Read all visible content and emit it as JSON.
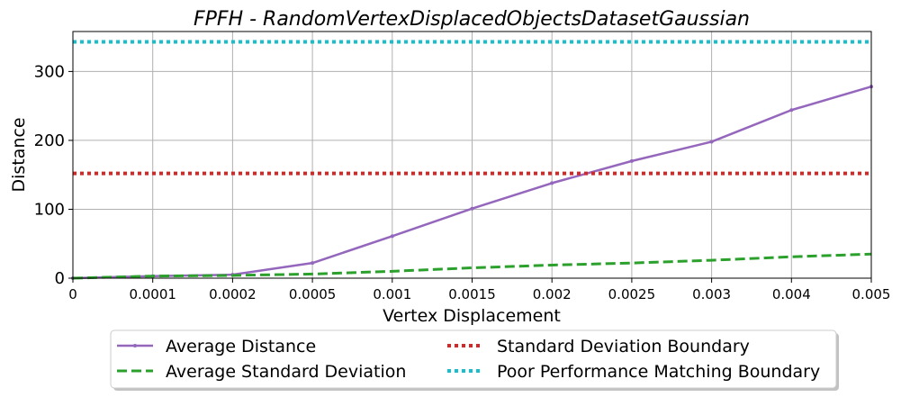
{
  "chart_data": {
    "type": "line",
    "title": "FPFH - RandomVertexDisplacedObjectsDatasetGaussian",
    "xlabel": "Vertex Displacement",
    "ylabel": "Distance",
    "categories": [
      "0",
      "0.0001",
      "0.0002",
      "0.0005",
      "0.001",
      "0.0015",
      "0.002",
      "0.0025",
      "0.003",
      "0.004",
      "0.005"
    ],
    "yticks": [
      0,
      100,
      200,
      300
    ],
    "ylim": [
      0,
      358
    ],
    "grid": true,
    "legend_position": "bottom-center",
    "series": [
      {
        "name": "Average Distance",
        "style": "solid-marker",
        "color": "#9467bd",
        "values": [
          0,
          3,
          5,
          22,
          61,
          101,
          138,
          170,
          198,
          244,
          278
        ]
      },
      {
        "name": "Average Standard Deviation",
        "style": "dashed",
        "color": "#2ca02c",
        "values": [
          0,
          3,
          4,
          6,
          10,
          15,
          19,
          22,
          26,
          31,
          35
        ]
      },
      {
        "name": "Standard Deviation Boundary",
        "style": "dotted",
        "color": "#d62728",
        "values": [
          152,
          152,
          152,
          152,
          152,
          152,
          152,
          152,
          152,
          152,
          152
        ]
      },
      {
        "name": "Poor Performance Matching Boundary",
        "style": "dotted",
        "color": "#17becf",
        "values": [
          343,
          343,
          343,
          343,
          343,
          343,
          343,
          343,
          343,
          343,
          343
        ]
      }
    ]
  }
}
